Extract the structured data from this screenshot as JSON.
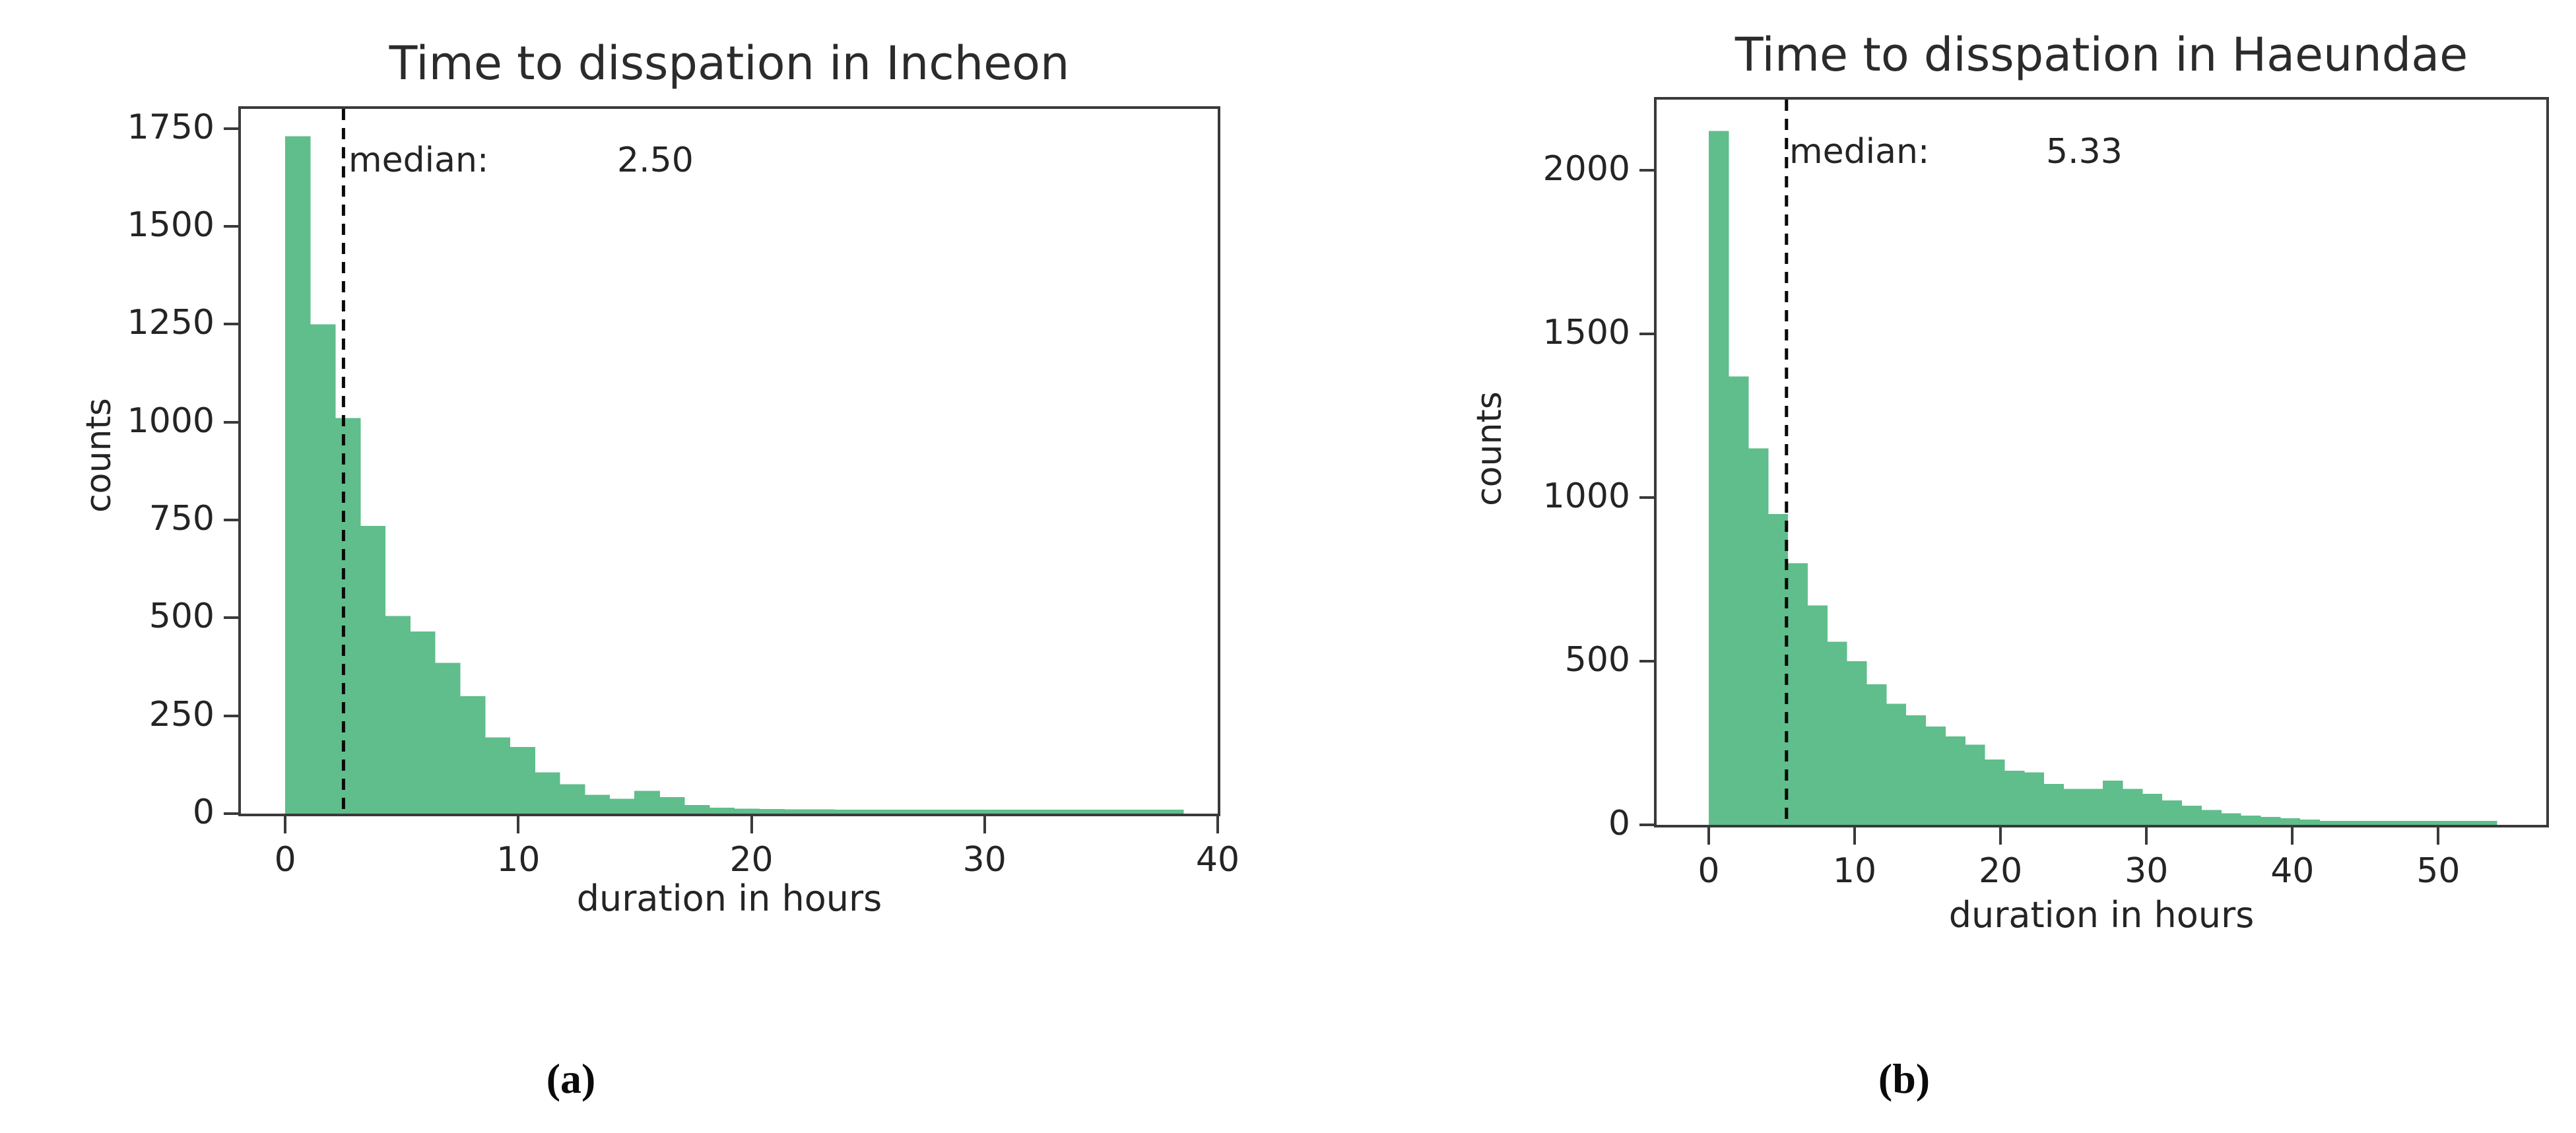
{
  "figure": {
    "background": "#ffffff",
    "bar_color": "#5FBE8B",
    "spine_color": "#3a3a3a",
    "text_color": "#242424",
    "median_line_color": "#0a0a0a"
  },
  "chart_data": [
    {
      "type": "bar",
      "subtype": "histogram",
      "title": "Time to disspation in Incheon",
      "xlabel": "duration in hours",
      "ylabel": "counts",
      "caption": "(a)",
      "median_label": "median:",
      "median_value": "2.50",
      "median": 2.5,
      "bin_start": 0,
      "bin_width": 1.07,
      "values": [
        1730,
        1250,
        1010,
        735,
        505,
        465,
        385,
        300,
        195,
        170,
        105,
        75,
        48,
        38,
        58,
        42,
        22,
        15,
        13,
        12,
        11,
        11,
        10,
        10,
        10,
        10,
        10,
        10,
        10,
        10,
        10,
        10,
        10,
        10,
        10,
        10
      ],
      "x_ticks": [
        0,
        10,
        20,
        30,
        40
      ],
      "y_ticks": [
        0,
        250,
        500,
        750,
        1000,
        1250,
        1500,
        1750
      ],
      "xlim": [
        -1.9,
        40.0
      ],
      "ylim": [
        0,
        1800
      ],
      "grid": false,
      "legend": "none"
    },
    {
      "type": "bar",
      "subtype": "histogram",
      "title": "Time to disspation in Haeundae",
      "xlabel": "duration in hours",
      "ylabel": "counts",
      "caption": "(b)",
      "median_label": "median:",
      "median_value": "5.33",
      "median": 5.33,
      "bin_start": 0,
      "bin_width": 1.35,
      "values": [
        2120,
        1370,
        1150,
        950,
        800,
        670,
        560,
        500,
        430,
        370,
        335,
        300,
        270,
        245,
        200,
        165,
        160,
        125,
        110,
        110,
        135,
        110,
        95,
        75,
        58,
        45,
        35,
        28,
        24,
        20,
        16,
        12,
        12,
        12,
        12,
        12,
        12,
        12,
        12,
        12
      ],
      "x_ticks": [
        0,
        10,
        20,
        30,
        40,
        50
      ],
      "y_ticks": [
        0,
        500,
        1000,
        1500,
        2000
      ],
      "xlim": [
        -3.57,
        57.4
      ],
      "ylim": [
        0,
        2216
      ],
      "grid": false,
      "legend": "none"
    }
  ]
}
